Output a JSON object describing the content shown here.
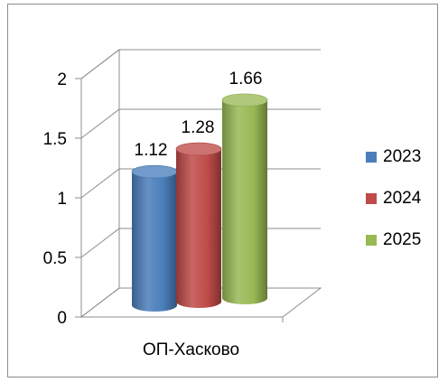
{
  "chart_data": {
    "type": "bar",
    "style": "3d-cylinder",
    "categories": [
      "ОП-Хасково"
    ],
    "series": [
      {
        "name": "2023",
        "values": [
          1.12
        ],
        "color": "#4a7ebb"
      },
      {
        "name": "2024",
        "values": [
          1.28
        ],
        "color": "#be4b48"
      },
      {
        "name": "2025",
        "values": [
          1.66
        ],
        "color": "#98b954"
      }
    ],
    "y_ticks": [
      "0",
      "0.5",
      "1",
      "1.5",
      "2"
    ],
    "ylim": [
      0,
      2
    ],
    "grid": true,
    "legend_position": "right",
    "data_labels": [
      "1.12",
      "1.28",
      "1.66"
    ]
  }
}
